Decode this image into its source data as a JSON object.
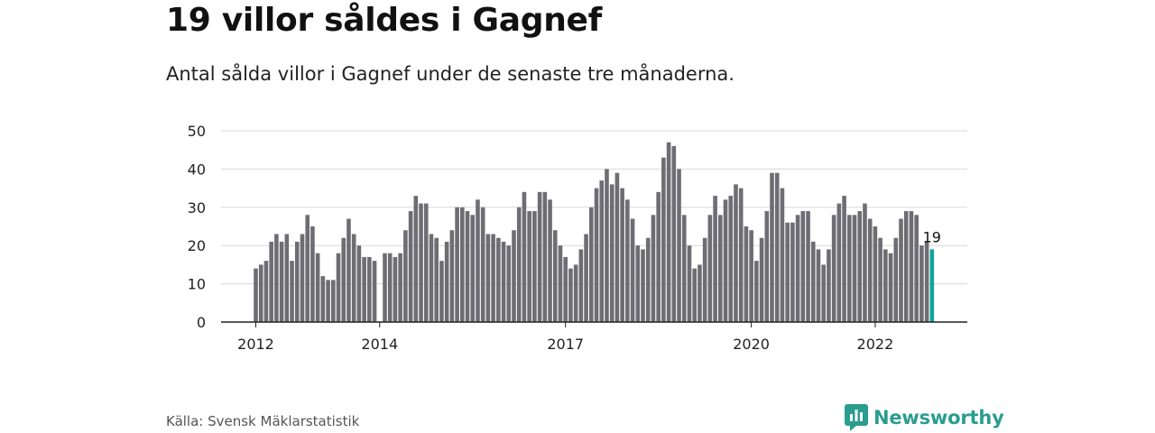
{
  "title": "19 villor såldes i Gagnef",
  "subtitle": "Antal sålda villor i Gagnef under de senaste tre månaderna.",
  "source": "Källa: Svensk Mäklarstatistik",
  "brand": {
    "name": "Newsworthy",
    "icon": "newsworthy-logo-icon",
    "color": "#2a9d8f"
  },
  "colors": {
    "bar": "#6e6d73",
    "highlight": "#12a39a",
    "grid": "#d9d9d9",
    "axis": "#222222"
  },
  "chart_data": {
    "type": "bar",
    "title": "19 villor såldes i Gagnef",
    "xlabel": "",
    "ylabel": "",
    "ylim": [
      0,
      50
    ],
    "yticks": [
      0,
      10,
      20,
      30,
      40,
      50
    ],
    "grid": true,
    "x_start": "2011-12",
    "x_tick_labels": [
      {
        "label": "2012",
        "month_index": 0
      },
      {
        "label": "2014",
        "month_index": 24
      },
      {
        "label": "2017",
        "month_index": 60
      },
      {
        "label": "2020",
        "month_index": 96
      },
      {
        "label": "2022",
        "month_index": 120
      }
    ],
    "values": [
      14,
      15,
      16,
      21,
      23,
      21,
      23,
      16,
      21,
      23,
      28,
      25,
      18,
      12,
      11,
      11,
      18,
      22,
      27,
      23,
      20,
      17,
      17,
      16,
      0,
      18,
      18,
      17,
      18,
      24,
      29,
      33,
      31,
      31,
      23,
      22,
      16,
      21,
      24,
      30,
      30,
      29,
      28,
      32,
      30,
      23,
      23,
      22,
      21,
      20,
      24,
      30,
      34,
      29,
      29,
      34,
      34,
      32,
      24,
      20,
      17,
      14,
      15,
      19,
      23,
      30,
      35,
      37,
      40,
      36,
      39,
      35,
      32,
      27,
      20,
      19,
      22,
      28,
      34,
      43,
      47,
      46,
      40,
      28,
      20,
      14,
      15,
      22,
      28,
      33,
      28,
      32,
      33,
      36,
      35,
      25,
      24,
      16,
      22,
      29,
      39,
      39,
      35,
      26,
      26,
      28,
      29,
      29,
      21,
      19,
      15,
      19,
      28,
      31,
      33,
      28,
      28,
      29,
      31,
      27,
      25,
      22,
      19,
      18,
      22,
      27,
      29,
      29,
      28,
      20,
      21,
      19
    ],
    "highlight_last": true,
    "annotation": "19"
  }
}
